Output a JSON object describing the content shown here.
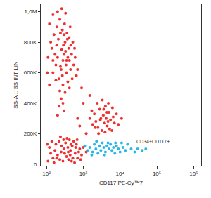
{
  "chart_data": {
    "type": "scatter",
    "log": "x",
    "grid": false,
    "xlabel": "CD117 PE-Cy™7",
    "ylabel": "SS-A :: SS INT LIN",
    "xlim": [
      70,
      1600000
    ],
    "xticks": [
      {
        "value": 100,
        "label": "10²"
      },
      {
        "value": 1000,
        "label": "10³"
      },
      {
        "value": 10000,
        "label": "10⁴"
      },
      {
        "value": 100000,
        "label": "10⁵"
      },
      {
        "value": 1000000,
        "label": "10⁶"
      }
    ],
    "ylim": [
      -10000,
      1048576
    ],
    "yticks": [
      0,
      {
        "value": 200000,
        "label": "200K"
      },
      {
        "value": 400000,
        "label": "400K"
      },
      {
        "value": 600000,
        "label": "600K"
      },
      {
        "value": 800000,
        "label": "800K"
      },
      {
        "value": 1000000,
        "label": "1,0M"
      }
    ],
    "annotations": [
      {
        "text": "CD34+CD117+",
        "x": 25000,
        "y": 150000
      }
    ],
    "series": [
      {
        "color": "#ee3030",
        "x": [
          120,
          150,
          180,
          200,
          220,
          250,
          260,
          280,
          300,
          320,
          340,
          350,
          380,
          400,
          420,
          450,
          480,
          500,
          550,
          600,
          110,
          130,
          160,
          190,
          230,
          270,
          310,
          360,
          410,
          460,
          520,
          140,
          170,
          210,
          240,
          290,
          330,
          370,
          440,
          150,
          200,
          260,
          330,
          120,
          105,
          180,
          280,
          380,
          230,
          320,
          420,
          650,
          700,
          580,
          240,
          190,
          350,
          270,
          150,
          300,
          250,
          220,
          300,
          200,
          280,
          110,
          150,
          200,
          250,
          300,
          350,
          400,
          450,
          500,
          600,
          700,
          800,
          120,
          180,
          220,
          280,
          330,
          380,
          420,
          480,
          550,
          650,
          750,
          900,
          130,
          160,
          230,
          260,
          310,
          360,
          440,
          520,
          620,
          140,
          170,
          240,
          290,
          390,
          460,
          580,
          680,
          850,
          1000,
          1200,
          105,
          190,
          1500,
          1800,
          2000,
          2200,
          2500,
          2800,
          3000,
          3200,
          3500,
          3800,
          4000,
          4200,
          4500,
          5000,
          5500,
          6000,
          6500,
          7000,
          8000,
          9000,
          2400,
          3300,
          4800,
          2600,
          3600,
          5200,
          1700,
          2100,
          4400,
          6200,
          11000,
          3900,
          2900,
          4700,
          800,
          1200,
          1000,
          900,
          1500,
          700
        ],
        "y": [
          520000,
          600000,
          650000,
          700000,
          560000,
          620000,
          750000,
          680000,
          720000,
          800000,
          650000,
          600000,
          700000,
          760000,
          680000,
          620000,
          720000,
          560000,
          650000,
          700000,
          700000,
          800000,
          850000,
          900000,
          950000,
          880000,
          920000,
          860000,
          830000,
          780000,
          800000,
          760000,
          720000,
          820000,
          860000,
          780000,
          740000,
          820000,
          900000,
          980000,
          1000000,
          1020000,
          990000,
          920000,
          600000,
          550000,
          520000,
          540000,
          480000,
          470000,
          500000,
          580000,
          620000,
          760000,
          640000,
          780000,
          680000,
          580000,
          680000,
          850000,
          430000,
          380000,
          350000,
          320000,
          400000,
          20000,
          40000,
          60000,
          80000,
          100000,
          50000,
          30000,
          90000,
          120000,
          70000,
          40000,
          100000,
          110000,
          130000,
          150000,
          20000,
          140000,
          110000,
          160000,
          20000,
          150000,
          130000,
          80000,
          60000,
          70000,
          10000,
          30000,
          120000,
          70000,
          170000,
          60000,
          40000,
          110000,
          150000,
          90000,
          180000,
          160000,
          80000,
          130000,
          10000,
          160000,
          30000,
          110000,
          80000,
          130000,
          40000,
          300000,
          260000,
          330000,
          280000,
          240000,
          360000,
          300000,
          220000,
          320000,
          270000,
          380000,
          300000,
          250000,
          340000,
          290000,
          220000,
          310000,
          270000,
          330000,
          260000,
          400000,
          420000,
          400000,
          200000,
          360000,
          230000,
          350000,
          240000,
          340000,
          370000,
          300000,
          210000,
          290000,
          280000,
          250000,
          200000,
          400000,
          500000,
          450000,
          300000
        ]
      },
      {
        "color": "#29b6e8",
        "x": [
          1100,
          1300,
          1500,
          1800,
          2000,
          2200,
          2500,
          2800,
          3000,
          3300,
          3600,
          4000,
          4400,
          5000,
          5500,
          6000,
          6600,
          7200,
          8000,
          9000,
          10000,
          12000,
          14000,
          16000,
          20000,
          25000,
          30000,
          40000,
          50000,
          2300,
          3800,
          4700,
          7500,
          1700,
          11000
        ],
        "y": [
          120000,
          90000,
          110000,
          80000,
          130000,
          100000,
          70000,
          120000,
          90000,
          140000,
          110000,
          80000,
          120000,
          100000,
          130000,
          90000,
          110000,
          70000,
          120000,
          100000,
          80000,
          110000,
          90000,
          130000,
          100000,
          80000,
          100000,
          90000,
          100000,
          150000,
          60000,
          140000,
          140000,
          60000,
          140000
        ]
      }
    ]
  }
}
